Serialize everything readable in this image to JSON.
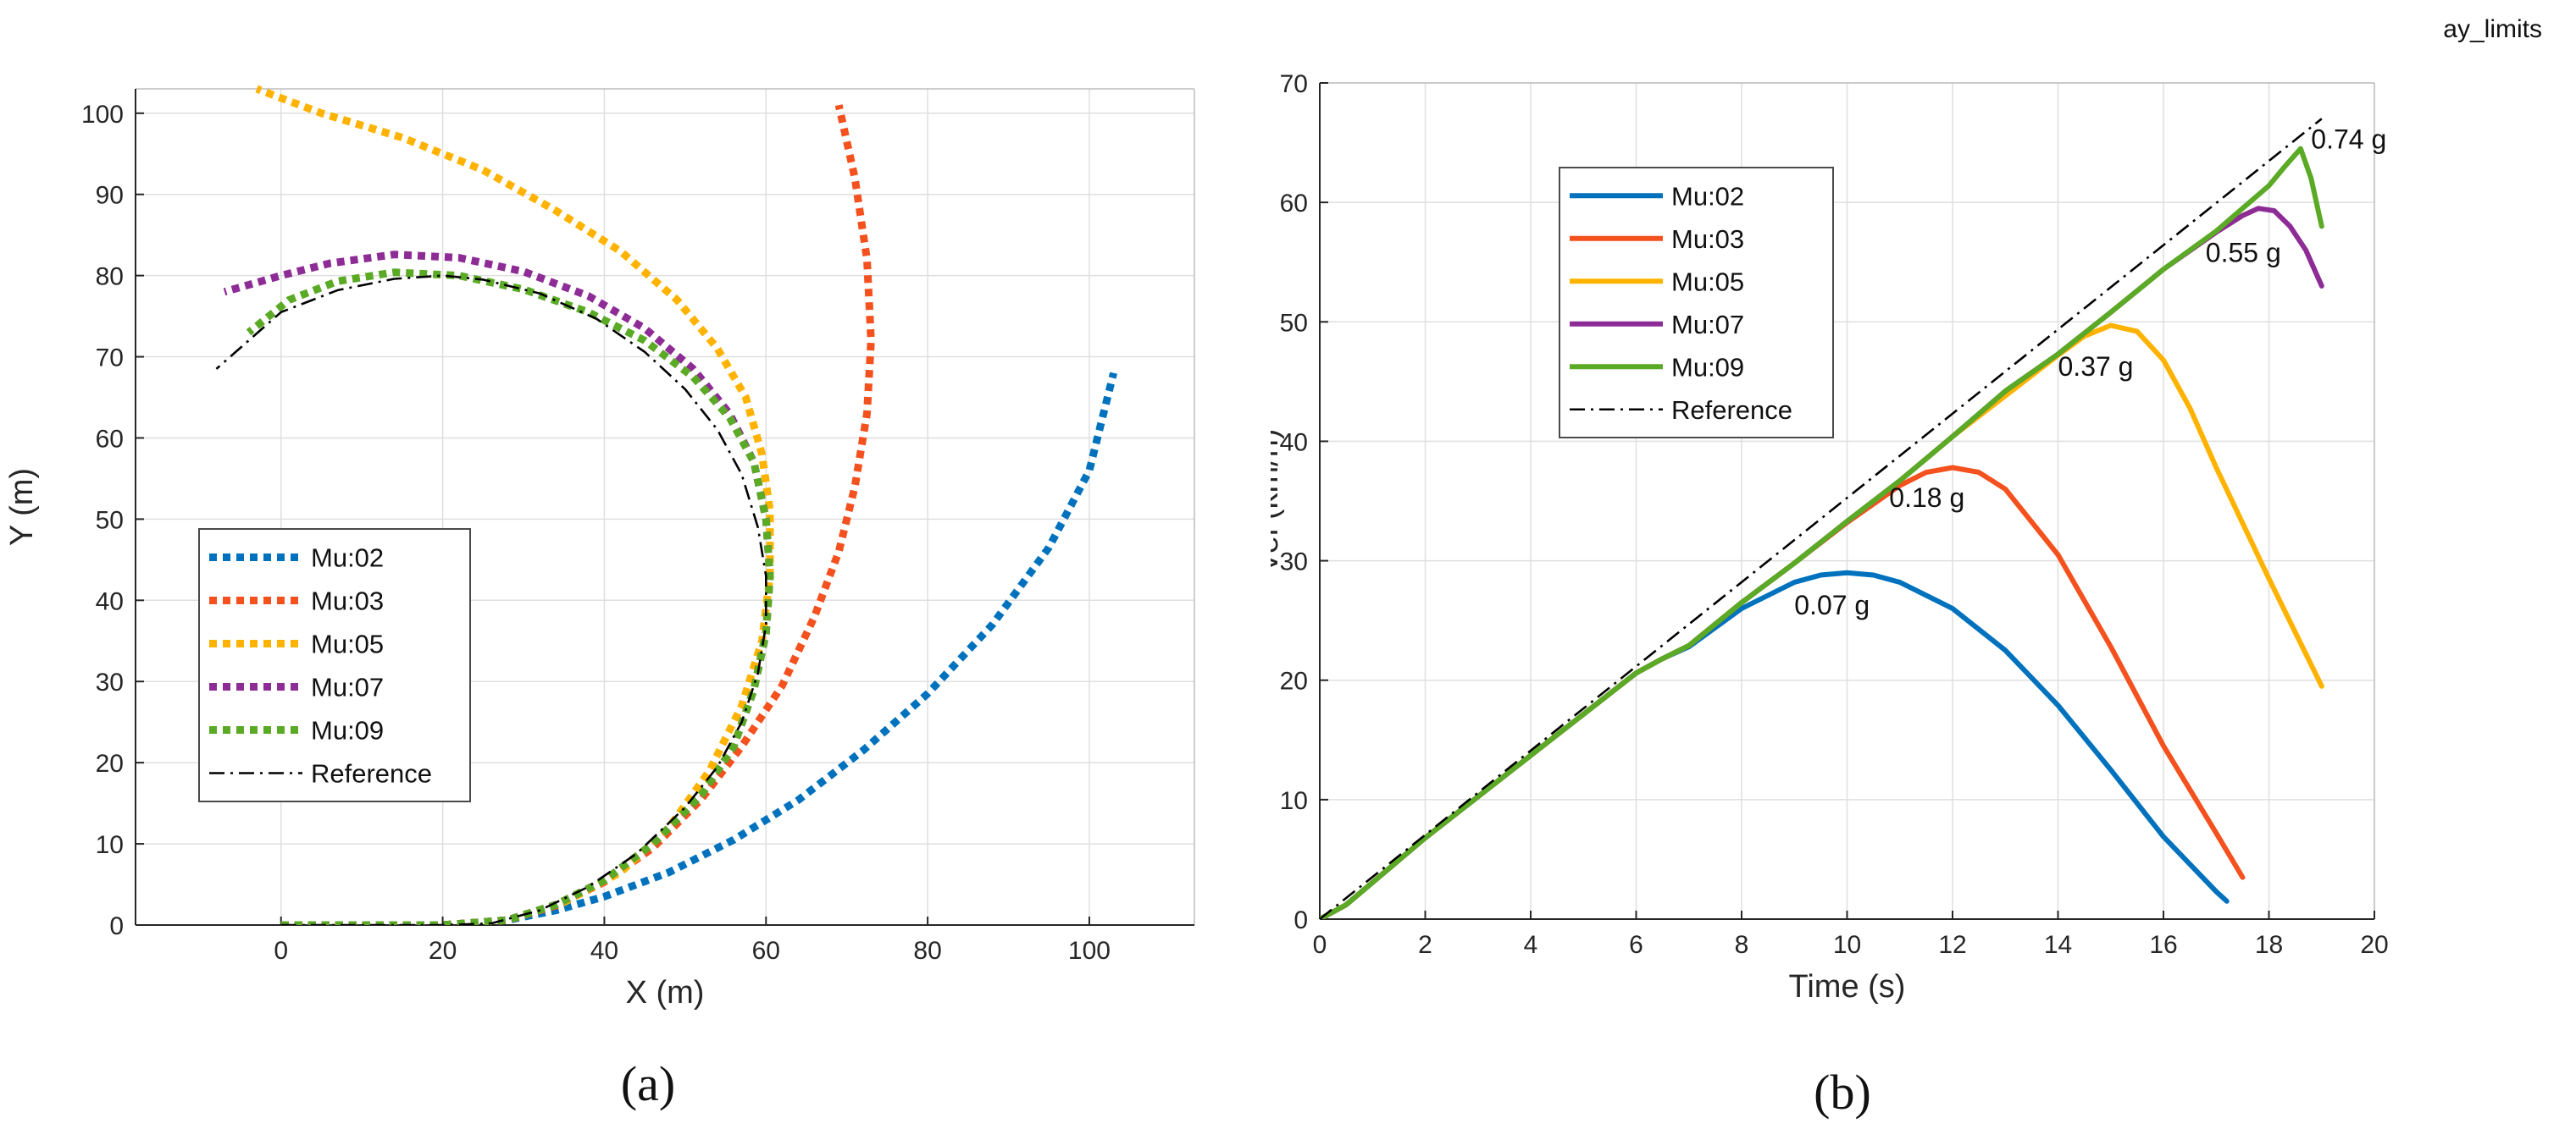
{
  "top_right_label": "ay_limits",
  "colors": {
    "mu02": "#0072BD",
    "mu03": "#F4511E",
    "mu05": "#FFB300",
    "mu07": "#8E2C96",
    "mu09": "#5AAA25",
    "reference": "#000000",
    "grid": "#DFDFDF",
    "axis": "#262626"
  },
  "chart_data": [
    {
      "id": "a",
      "type": "line",
      "panel_label": "(a)",
      "xlabel": "X (m)",
      "ylabel": "Y (m)",
      "xlim": [
        -18,
        113
      ],
      "ylim": [
        0,
        103
      ],
      "xticks": [
        0,
        20,
        40,
        60,
        80,
        100
      ],
      "yticks": [
        0,
        10,
        20,
        30,
        40,
        50,
        60,
        70,
        80,
        90,
        100
      ],
      "grid": true,
      "legend_position": "center-left",
      "series": [
        {
          "name": "Mu:02",
          "style": "dotted",
          "color_key": "mu02",
          "x": [
            0,
            10,
            20,
            28,
            34,
            40,
            48,
            56,
            64,
            72,
            80,
            88,
            95,
            100,
            103
          ],
          "y": [
            0,
            0,
            0,
            0.6,
            1.8,
            3.5,
            6.5,
            10.5,
            15.4,
            21.5,
            28.5,
            37,
            46.5,
            56,
            68
          ]
        },
        {
          "name": "Mu:03",
          "style": "dotted",
          "color_key": "mu03",
          "x": [
            0,
            10,
            20,
            28,
            34,
            40,
            46,
            52,
            57,
            62,
            66,
            69,
            71,
            72.5,
            73,
            72.5,
            71,
            69
          ],
          "y": [
            0,
            0,
            0,
            0.6,
            2.4,
            5.3,
            9.5,
            15.5,
            22,
            29.5,
            38,
            46,
            54,
            63,
            72,
            82,
            92,
            101
          ]
        },
        {
          "name": "Mu:05",
          "style": "dotted",
          "color_key": "mu05",
          "x": [
            0,
            10,
            20,
            28,
            35,
            42,
            48,
            53,
            57,
            59.5,
            60.5,
            60.5,
            59.5,
            57.5,
            54,
            49,
            42,
            34,
            25,
            15,
            5,
            -3
          ],
          "y": [
            0,
            0,
            0,
            0.6,
            2.8,
            6.5,
            12,
            19,
            27,
            35,
            43,
            51,
            58,
            65,
            71,
            77,
            83,
            88,
            93,
            97,
            100,
            103
          ]
        },
        {
          "name": "Mu:07",
          "style": "dotted",
          "color_key": "mu07",
          "x": [
            0,
            10,
            20,
            28,
            34,
            40,
            46,
            52,
            56,
            58.5,
            60,
            60.5,
            60,
            58.5,
            55.5,
            51,
            45,
            38,
            30,
            22,
            14,
            6,
            0,
            -7
          ],
          "y": [
            0,
            0,
            0,
            0.6,
            2.5,
            5.5,
            10,
            16,
            22,
            29,
            36,
            43,
            50,
            57,
            63,
            68.5,
            73.5,
            77.5,
            80.5,
            82.2,
            82.6,
            81.5,
            80,
            78
          ]
        },
        {
          "name": "Mu:09",
          "style": "dotted",
          "color_key": "mu09",
          "x": [
            0,
            10,
            20,
            28,
            34,
            40,
            46,
            52,
            56,
            58.5,
            60,
            60.5,
            60,
            58.5,
            55.5,
            51,
            45,
            38,
            30,
            22,
            14,
            7,
            1,
            -4
          ],
          "y": [
            0,
            0,
            0,
            0.6,
            2.5,
            5.5,
            10,
            16,
            22,
            29,
            36,
            43,
            50,
            57,
            62.5,
            67.5,
            72,
            75.5,
            78.3,
            80,
            80.4,
            79.3,
            77,
            73
          ]
        },
        {
          "name": "Reference",
          "style": "dashdot",
          "color_key": "reference",
          "x": [
            0,
            10,
            20,
            26,
            32,
            38,
            44,
            50,
            54,
            57,
            59,
            60,
            60,
            59,
            57,
            54,
            50,
            45,
            39,
            32,
            25,
            20,
            14,
            7,
            0,
            -8
          ],
          "y": [
            0,
            0,
            0,
            0.2,
            1.8,
            4.7,
            8.8,
            14.5,
            19.5,
            25,
            31,
            37,
            43,
            49,
            55.5,
            61,
            66,
            70.6,
            74.7,
            77.8,
            79.5,
            80,
            79.6,
            78.2,
            75.5,
            68.5
          ]
        }
      ]
    },
    {
      "id": "b",
      "type": "line",
      "panel_label": "(b)",
      "xlabel": "Time (s)",
      "ylabel": "Vel (km/h)",
      "xlim": [
        0,
        20
      ],
      "ylim": [
        0,
        70
      ],
      "xticks": [
        0,
        2,
        4,
        6,
        8,
        10,
        12,
        14,
        16,
        18,
        20
      ],
      "yticks": [
        0,
        10,
        20,
        30,
        40,
        50,
        60,
        70
      ],
      "grid": true,
      "legend_position": "top-left",
      "annotations": [
        {
          "text": "0.07 g",
          "x": 9.0,
          "y": 25.5
        },
        {
          "text": "0.18 g",
          "x": 10.8,
          "y": 34.5
        },
        {
          "text": "0.37 g",
          "x": 14.0,
          "y": 45.5
        },
        {
          "text": "0.55 g",
          "x": 16.8,
          "y": 55.0
        },
        {
          "text": "0.74 g",
          "x": 18.8,
          "y": 64.5
        }
      ],
      "series": [
        {
          "name": "Mu:02",
          "style": "solid",
          "color_key": "mu02",
          "x": [
            0,
            0.5,
            2,
            4,
            6,
            6.5,
            7,
            8,
            9,
            9.5,
            10,
            10.5,
            11,
            12,
            13,
            14,
            15,
            16,
            17,
            17.2
          ],
          "y": [
            0,
            1.2,
            6.8,
            13.7,
            20.6,
            21.8,
            22.8,
            26,
            28.2,
            28.8,
            29,
            28.8,
            28.2,
            26,
            22.5,
            17.9,
            12.5,
            6.9,
            2.3,
            1.5
          ]
        },
        {
          "name": "Mu:03",
          "style": "solid",
          "color_key": "mu03",
          "x": [
            0,
            0.5,
            2,
            4,
            6,
            6.5,
            7,
            8,
            9,
            10,
            11,
            11.5,
            12,
            12.5,
            13,
            14,
            15,
            16,
            17,
            17.5
          ],
          "y": [
            0,
            1.2,
            6.8,
            13.7,
            20.6,
            21.8,
            22.9,
            26.5,
            29.8,
            33.2,
            36.3,
            37.4,
            37.8,
            37.4,
            36,
            30.5,
            22.8,
            14.5,
            7.2,
            3.5
          ]
        },
        {
          "name": "Mu:05",
          "style": "solid",
          "color_key": "mu05",
          "x": [
            0,
            0.5,
            2,
            4,
            6,
            6.5,
            7,
            8,
            9,
            10,
            11,
            12,
            13,
            14,
            14.5,
            15,
            15.5,
            16,
            16.5,
            17,
            18,
            19
          ],
          "y": [
            0,
            1.2,
            6.8,
            13.7,
            20.6,
            21.8,
            22.9,
            26.5,
            29.8,
            33.3,
            36.7,
            40.4,
            43.8,
            47.2,
            48.8,
            49.7,
            49.2,
            46.8,
            42.8,
            37.8,
            28.5,
            19.5
          ]
        },
        {
          "name": "Mu:07",
          "style": "solid",
          "color_key": "mu07",
          "x": [
            0,
            0.5,
            2,
            4,
            6,
            6.5,
            7,
            8,
            9,
            10,
            11,
            12,
            13,
            14,
            15,
            16,
            17,
            17.5,
            17.8,
            18.1,
            18.4,
            18.7,
            19
          ],
          "y": [
            0,
            1.2,
            6.8,
            13.7,
            20.6,
            21.8,
            22.9,
            26.5,
            29.8,
            33.3,
            36.7,
            40.4,
            44.2,
            47.3,
            50.8,
            54.4,
            57.5,
            58.9,
            59.5,
            59.3,
            58,
            56,
            53
          ]
        },
        {
          "name": "Mu:09",
          "style": "solid",
          "color_key": "mu09",
          "x": [
            0,
            0.5,
            2,
            4,
            6,
            6.5,
            7,
            8,
            9,
            10,
            11,
            12,
            13,
            14,
            15,
            16,
            17,
            18,
            18.3,
            18.6,
            18.8,
            19
          ],
          "y": [
            0,
            1.2,
            6.8,
            13.7,
            20.6,
            21.8,
            22.9,
            26.5,
            29.8,
            33.3,
            36.7,
            40.4,
            44.2,
            47.3,
            50.8,
            54.4,
            57.6,
            61.4,
            63,
            64.5,
            62,
            58
          ]
        },
        {
          "name": "Reference",
          "style": "dashdot",
          "color_key": "reference",
          "x": [
            0,
            19
          ],
          "y": [
            0,
            67
          ]
        }
      ]
    }
  ]
}
